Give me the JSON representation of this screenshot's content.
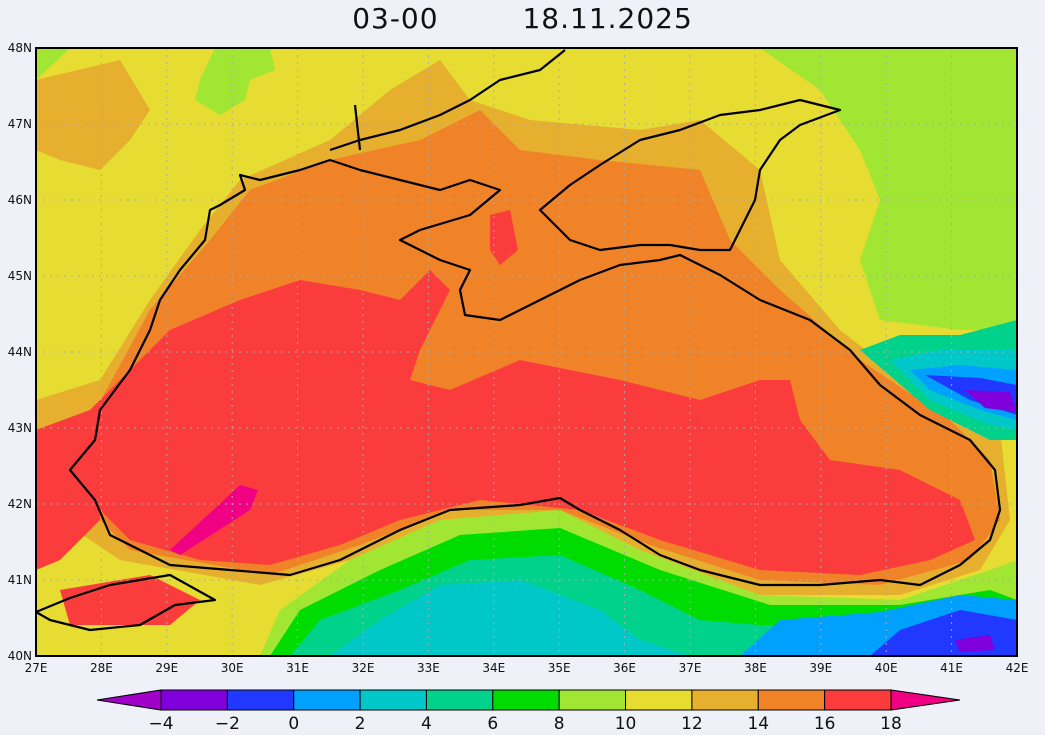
{
  "header": {
    "time": "03-00",
    "date": "18.11.2025"
  },
  "map": {
    "lon_labels": [
      "27E",
      "28E",
      "29E",
      "30E",
      "31E",
      "32E",
      "33E",
      "34E",
      "35E",
      "36E",
      "37E",
      "38E",
      "39E",
      "40E",
      "41E",
      "42E"
    ],
    "lat_labels": [
      "40N",
      "41N",
      "42N",
      "43N",
      "44N",
      "45N",
      "46N",
      "47N",
      "48N"
    ],
    "lon_range": [
      27,
      42
    ],
    "lat_range": [
      40,
      48
    ],
    "grid": true
  },
  "colorbar": {
    "labels": [
      "−4",
      "−2",
      "0",
      "2",
      "4",
      "6",
      "8",
      "10",
      "12",
      "14",
      "16",
      "18"
    ],
    "colors": [
      "#a000c8",
      "#8000dc",
      "#2038ff",
      "#00a0ff",
      "#00c8c8",
      "#00d28c",
      "#00dc00",
      "#a0e632",
      "#e6dc32",
      "#e6af2d",
      "#f08228",
      "#fa3c3c",
      "#f00082"
    ]
  }
}
